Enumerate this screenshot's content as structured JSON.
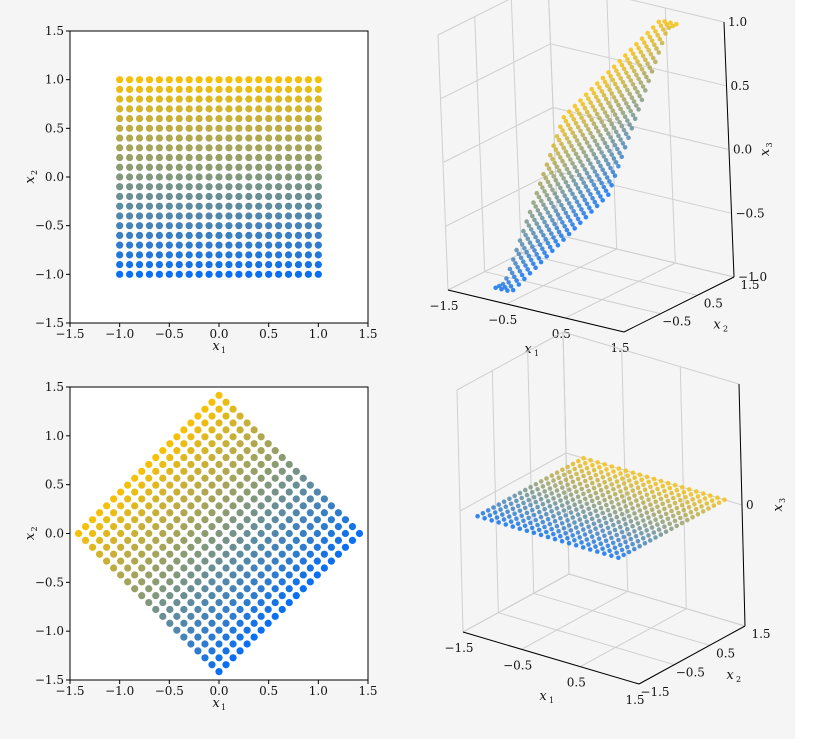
{
  "colors": {
    "low": "#0a6ff2",
    "high": "#f7c008",
    "grid3d": "#cfcfcf",
    "axis": "#000000"
  },
  "chart_data": [
    {
      "panel": "top-left",
      "type": "scatter",
      "grid_points": 21,
      "x_range": [
        -1.0,
        1.0
      ],
      "y_range": [
        -1.0,
        1.0
      ],
      "color_by": "x2",
      "xlim": [
        -1.5,
        1.5
      ],
      "ylim": [
        -1.5,
        1.5
      ],
      "xticks": [
        "−1.5",
        "−1.0",
        "−0.5",
        "0.0",
        "0.5",
        "1.0",
        "1.5"
      ],
      "yticks": [
        "−1.5",
        "−1.0",
        "−0.5",
        "0.0",
        "0.5",
        "1.0",
        "1.5"
      ],
      "xlabel": "x",
      "xlabel_sub": "1",
      "ylabel": "x",
      "ylabel_sub": "2"
    },
    {
      "panel": "top-right",
      "type": "scatter",
      "projection": "3d",
      "grid_points": 21,
      "x_range": [
        -1.0,
        1.0
      ],
      "y_range": [
        -1.0,
        1.0
      ],
      "z_equals": "x2",
      "xticks": [
        "−1.5",
        "−0.5",
        "0.5",
        "1.5"
      ],
      "yticks": [
        "−0.5",
        "0.5",
        "1.5"
      ],
      "zticks": [
        "−1.0",
        "−0.5",
        "0.0",
        "0.5",
        "1.0"
      ],
      "xlabel": "x",
      "xlabel_sub": "1",
      "ylabel": "x",
      "ylabel_sub": "2",
      "zlabel": "x",
      "zlabel_sub": "3"
    },
    {
      "panel": "bottom-left",
      "type": "scatter",
      "grid_points": 21,
      "rotation_deg": 45,
      "color_by": "original_x2",
      "xlim": [
        -1.5,
        1.5
      ],
      "ylim": [
        -1.5,
        1.5
      ],
      "xticks": [
        "−1.5",
        "−1.0",
        "−0.5",
        "0.0",
        "0.5",
        "1.0",
        "1.5"
      ],
      "yticks": [
        "−1.5",
        "−1.0",
        "−0.5",
        "0.0",
        "0.5",
        "1.0",
        "1.5"
      ],
      "xlabel": "x",
      "xlabel_sub": "1",
      "ylabel": "x",
      "ylabel_sub": "2"
    },
    {
      "panel": "bottom-right",
      "type": "scatter",
      "projection": "3d",
      "grid_points": 21,
      "x_range": [
        -1.5,
        1.5
      ],
      "y_range": [
        -1.5,
        1.5
      ],
      "z_equals": "0",
      "xticks": [
        "−1.5",
        "−0.5",
        "0.5",
        "1.5"
      ],
      "yticks": [
        "−1.5",
        "−0.5",
        "0.5",
        "1.5"
      ],
      "zticks": [
        "0"
      ],
      "xlabel": "x",
      "xlabel_sub": "1",
      "ylabel": "x",
      "ylabel_sub": "2",
      "zlabel": "x",
      "zlabel_sub": "3"
    }
  ]
}
